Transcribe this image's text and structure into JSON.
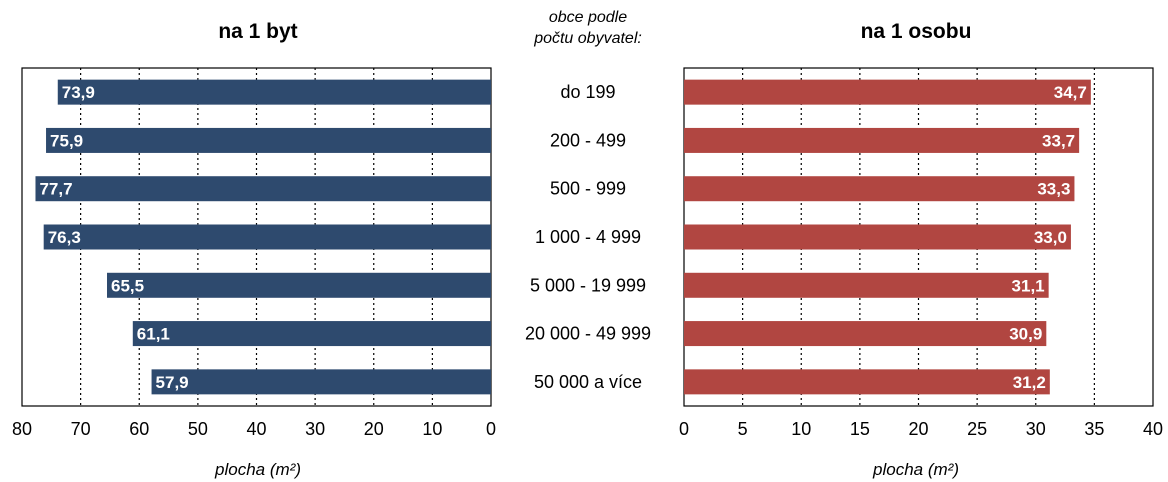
{
  "categories_title_line1": "obce podle",
  "categories_title_line2": "počtu obyvatel:",
  "chart_data": [
    {
      "type": "bar",
      "orientation": "horizontal",
      "reversed_x": true,
      "title": "na 1 byt",
      "xlabel": "plocha (m²)",
      "xlim": [
        0,
        80
      ],
      "xticks": [
        "80",
        "70",
        "60",
        "50",
        "40",
        "30",
        "20",
        "10",
        "0"
      ],
      "categories": [
        "do 199",
        "200 - 499",
        "500 - 999",
        "1 000 - 4 999",
        "5 000 - 19 999",
        "20 000 - 49 999",
        "50 000 a více"
      ],
      "values": [
        73.9,
        75.9,
        77.7,
        76.3,
        65.5,
        61.1,
        57.9
      ],
      "labels": [
        "73,9",
        "75,9",
        "77,7",
        "76,3",
        "65,5",
        "61,1",
        "57,9"
      ],
      "color": "#2e4a6e",
      "grid": "vertical dotted"
    },
    {
      "type": "bar",
      "orientation": "horizontal",
      "reversed_x": false,
      "title": "na 1 osobu",
      "xlabel": "plocha (m²)",
      "xlim": [
        0,
        40
      ],
      "xticks": [
        "0",
        "5",
        "10",
        "15",
        "20",
        "25",
        "30",
        "35",
        "40"
      ],
      "categories": [
        "do 199",
        "200 - 499",
        "500 - 999",
        "1 000 - 4 999",
        "5 000 - 19 999",
        "20 000 - 49 999",
        "50 000 a více"
      ],
      "values": [
        34.7,
        33.7,
        33.3,
        33.0,
        31.1,
        30.9,
        31.2
      ],
      "labels": [
        "34,7",
        "33,7",
        "33,3",
        "33,0",
        "31,1",
        "30,9",
        "31,2"
      ],
      "color": "#b14641",
      "grid": "vertical dotted"
    }
  ]
}
